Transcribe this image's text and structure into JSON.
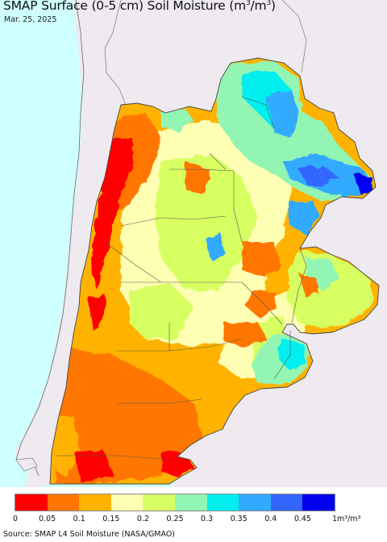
{
  "title": {
    "main": "SMAP Surface (0-5 cm) Soil Moisture (m",
    "sup1": "3",
    "mid": "/m",
    "sup2": "3",
    "end": ")"
  },
  "date": "Mar. 25, 2025",
  "colors": {
    "ocean": "#cfffff",
    "neighbor_land": "#eeeaf0",
    "border": "#555555"
  },
  "legend": {
    "colors": [
      "#ff0000",
      "#ff7700",
      "#ffb300",
      "#ffffb3",
      "#d7ff62",
      "#93f5b3",
      "#00eeee",
      "#33aaff",
      "#3366ff",
      "#0000ee"
    ],
    "ticks": [
      "0",
      "0.05",
      "0.1",
      "0.15",
      "0.2",
      "0.25",
      "0.3",
      "0.35",
      "0.4",
      "0.45",
      "1"
    ],
    "unit": "m³/m³"
  },
  "source": "Source: SMAP L4 Soil Moisture (NASA/GMAO)"
}
